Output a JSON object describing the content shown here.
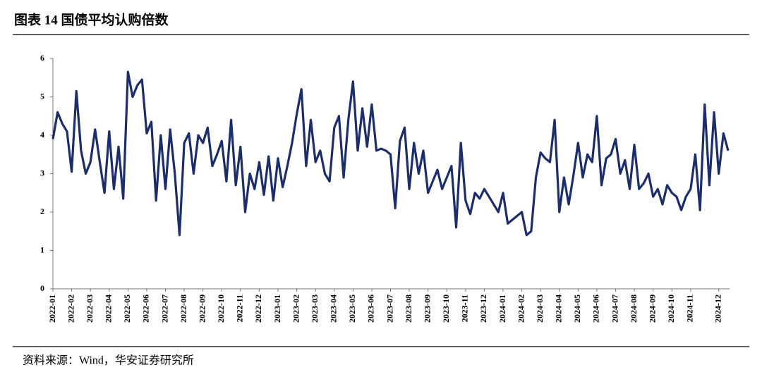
{
  "chart_data": {
    "type": "line",
    "title": "图表 14 国债平均认购倍数",
    "source": "资料来源：Wind，华安证券研究所",
    "categories": [
      "2022-01",
      null,
      null,
      null,
      "2022-02",
      null,
      null,
      null,
      "2022-03",
      null,
      null,
      null,
      "2022-04",
      null,
      null,
      null,
      "2022-05",
      null,
      null,
      null,
      "2022-06",
      null,
      null,
      null,
      "2022-07",
      null,
      null,
      null,
      "2022-08",
      null,
      null,
      null,
      "2022-09",
      null,
      null,
      null,
      "2022-10",
      null,
      null,
      null,
      "2022-11",
      null,
      null,
      null,
      "2022-12",
      null,
      null,
      null,
      "2023-01",
      null,
      null,
      null,
      "2023-02",
      null,
      null,
      null,
      "2023-03",
      null,
      null,
      null,
      "2023-04",
      null,
      null,
      null,
      "2023-05",
      null,
      null,
      null,
      "2023-06",
      null,
      null,
      null,
      "2023-07",
      null,
      null,
      null,
      "2023-08",
      null,
      null,
      null,
      "2023-09",
      null,
      null,
      null,
      "2023-10",
      null,
      null,
      null,
      "2023-11",
      null,
      null,
      null,
      "2023-12",
      null,
      null,
      null,
      "2024-01",
      null,
      null,
      null,
      "2024-02",
      null,
      null,
      null,
      "2024-03",
      null,
      null,
      null,
      "2024-04",
      null,
      null,
      null,
      "2024-05",
      null,
      null,
      null,
      "2024-06",
      null,
      null,
      null,
      "2024-07",
      null,
      null,
      null,
      "2024-08",
      null,
      null,
      null,
      "2024-09",
      null,
      null,
      null,
      "2024-10",
      null,
      null,
      null,
      "2024-11",
      null,
      null,
      null,
      null,
      null,
      "2024-12",
      null,
      null
    ],
    "values": [
      3.9,
      4.6,
      4.3,
      4.1,
      3.05,
      5.15,
      3.6,
      3.0,
      3.3,
      4.15,
      3.3,
      2.5,
      4.1,
      2.6,
      3.7,
      2.35,
      5.65,
      5.0,
      5.3,
      5.45,
      4.05,
      4.35,
      2.3,
      4.0,
      2.6,
      4.15,
      3.0,
      1.4,
      3.8,
      4.05,
      3.0,
      4.0,
      3.8,
      4.2,
      3.2,
      3.5,
      3.85,
      2.8,
      4.4,
      2.7,
      3.7,
      2.0,
      3.0,
      2.6,
      3.3,
      2.45,
      3.45,
      2.3,
      3.4,
      2.65,
      3.2,
      3.8,
      4.55,
      5.2,
      3.2,
      4.4,
      3.3,
      3.6,
      3.0,
      2.8,
      4.2,
      4.5,
      2.9,
      4.4,
      5.4,
      3.6,
      4.7,
      3.7,
      4.8,
      3.6,
      3.65,
      3.6,
      3.5,
      2.1,
      3.85,
      4.2,
      2.6,
      3.8,
      3.0,
      3.6,
      2.5,
      2.8,
      3.1,
      2.6,
      2.9,
      3.2,
      1.6,
      3.8,
      2.3,
      1.95,
      2.5,
      2.35,
      2.6,
      2.4,
      2.2,
      2.0,
      2.5,
      1.7,
      1.8,
      1.9,
      2.0,
      1.4,
      1.5,
      2.9,
      3.55,
      3.4,
      3.3,
      4.4,
      2.0,
      2.9,
      2.2,
      2.95,
      3.8,
      2.9,
      3.5,
      3.3,
      4.5,
      2.7,
      3.4,
      3.5,
      3.9,
      3.0,
      3.35,
      2.6,
      3.75,
      2.6,
      2.75,
      3.0,
      2.4,
      2.6,
      2.2,
      2.7,
      2.5,
      2.4,
      2.05,
      2.4,
      2.6,
      3.5,
      2.05,
      4.8,
      2.7,
      4.6,
      3.0,
      4.05,
      3.6
    ],
    "color": "#1c2d6b",
    "ylim": [
      0,
      6
    ],
    "yticks": [
      0,
      1,
      2,
      3,
      4,
      5,
      6
    ],
    "grid": false
  }
}
